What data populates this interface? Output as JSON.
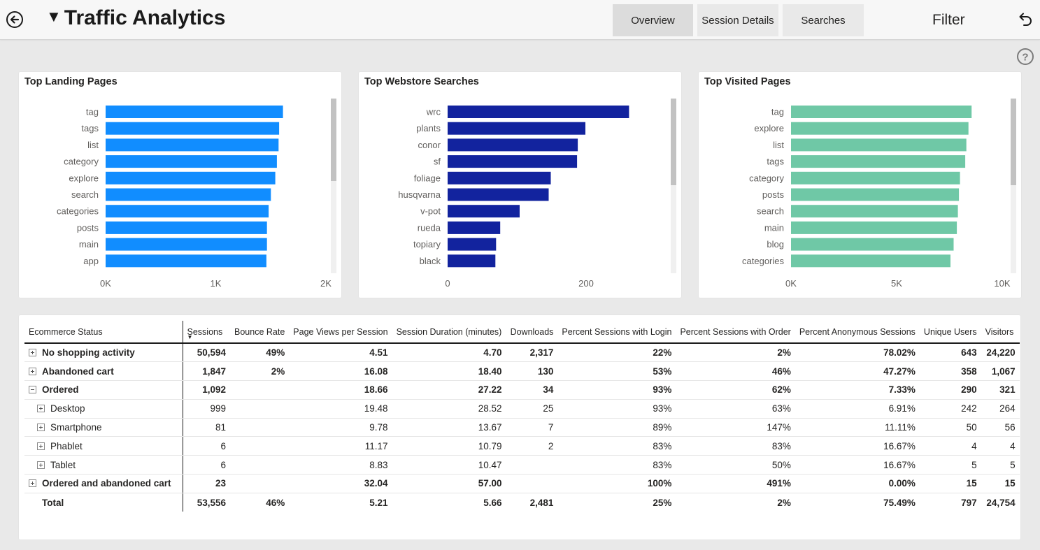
{
  "header": {
    "title": "Traffic Analytics",
    "tabs": [
      {
        "label": "Overview",
        "active": true
      },
      {
        "label": "Session Details",
        "active": false
      },
      {
        "label": "Searches",
        "active": false
      }
    ],
    "filter_label": "Filter",
    "icons": {
      "back": "back-arrow-circle-icon",
      "undo": "undo-icon",
      "help": "help-circle-icon",
      "title_caret": "triangle-down-icon"
    }
  },
  "chart_data": [
    {
      "type": "bar",
      "orientation": "horizontal",
      "title": "Top Landing Pages",
      "categories": [
        "tag",
        "tags",
        "list",
        "category",
        "explore",
        "search",
        "categories",
        "posts",
        "main",
        "app"
      ],
      "values": [
        1610,
        1575,
        1570,
        1555,
        1540,
        1500,
        1480,
        1465,
        1465,
        1460
      ],
      "xlim": [
        0,
        2000
      ],
      "ticks": [
        "0K",
        "1K",
        "2K"
      ],
      "color": "#118dff"
    },
    {
      "type": "bar",
      "orientation": "horizontal",
      "title": "Top Webstore Searches",
      "categories": [
        "wrc",
        "plants",
        "conor",
        "sf",
        "foliage",
        "husqvarna",
        "v-pot",
        "rueda",
        "topiary",
        "black"
      ],
      "values": [
        262,
        199,
        188,
        187,
        149,
        146,
        104,
        76,
        70,
        69
      ],
      "xlim": [
        0,
        300
      ],
      "ticks": [
        "0",
        "200"
      ],
      "color": "#12239e"
    },
    {
      "type": "bar",
      "orientation": "horizontal",
      "title": "Top Visited Pages",
      "categories": [
        "tag",
        "explore",
        "list",
        "tags",
        "category",
        "posts",
        "search",
        "main",
        "blog",
        "categories"
      ],
      "values": [
        8550,
        8400,
        8300,
        8250,
        8000,
        7950,
        7900,
        7850,
        7700,
        7550
      ],
      "xlim": [
        0,
        10000
      ],
      "ticks": [
        "0K",
        "5K",
        "10K"
      ],
      "color": "#6fc8a6"
    }
  ],
  "table": {
    "columns": [
      "Ecommerce Status",
      "Sessions",
      "Bounce Rate",
      "Page Views per Session",
      "Session Duration (minutes)",
      "Downloads",
      "Percent Sessions with Login",
      "Percent Sessions with Order",
      "Percent Anonymous Sessions",
      "Unique Users",
      "Visitors"
    ],
    "sorted_column": "Sessions",
    "rows": [
      {
        "label": "No shopping activity",
        "level": 0,
        "expander": "plus",
        "values": [
          "50,594",
          "49%",
          "4.51",
          "4.70",
          "2,317",
          "22%",
          "2%",
          "78.02%",
          "643",
          "24,220"
        ]
      },
      {
        "label": "Abandoned cart",
        "level": 0,
        "expander": "plus",
        "values": [
          "1,847",
          "2%",
          "16.08",
          "18.40",
          "130",
          "53%",
          "46%",
          "47.27%",
          "358",
          "1,067"
        ]
      },
      {
        "label": "Ordered",
        "level": 0,
        "expander": "minus",
        "values": [
          "1,092",
          "",
          "18.66",
          "27.22",
          "34",
          "93%",
          "62%",
          "7.33%",
          "290",
          "321"
        ]
      },
      {
        "label": "Desktop",
        "level": 1,
        "expander": "plus",
        "values": [
          "999",
          "",
          "19.48",
          "28.52",
          "25",
          "93%",
          "63%",
          "6.91%",
          "242",
          "264"
        ]
      },
      {
        "label": "Smartphone",
        "level": 1,
        "expander": "plus",
        "values": [
          "81",
          "",
          "9.78",
          "13.67",
          "7",
          "89%",
          "147%",
          "11.11%",
          "50",
          "56"
        ]
      },
      {
        "label": "Phablet",
        "level": 1,
        "expander": "plus",
        "values": [
          "6",
          "",
          "11.17",
          "10.79",
          "2",
          "83%",
          "83%",
          "16.67%",
          "4",
          "4"
        ]
      },
      {
        "label": "Tablet",
        "level": 1,
        "expander": "plus",
        "values": [
          "6",
          "",
          "8.83",
          "10.47",
          "",
          "83%",
          "50%",
          "16.67%",
          "5",
          "5"
        ]
      },
      {
        "label": "Ordered and abandoned cart",
        "level": 0,
        "expander": "plus",
        "values": [
          "23",
          "",
          "32.04",
          "57.00",
          "",
          "100%",
          "491%",
          "0.00%",
          "15",
          "15"
        ]
      }
    ],
    "total": {
      "label": "Total",
      "values": [
        "53,556",
        "46%",
        "5.21",
        "5.66",
        "2,481",
        "25%",
        "2%",
        "75.49%",
        "797",
        "24,754"
      ]
    }
  }
}
